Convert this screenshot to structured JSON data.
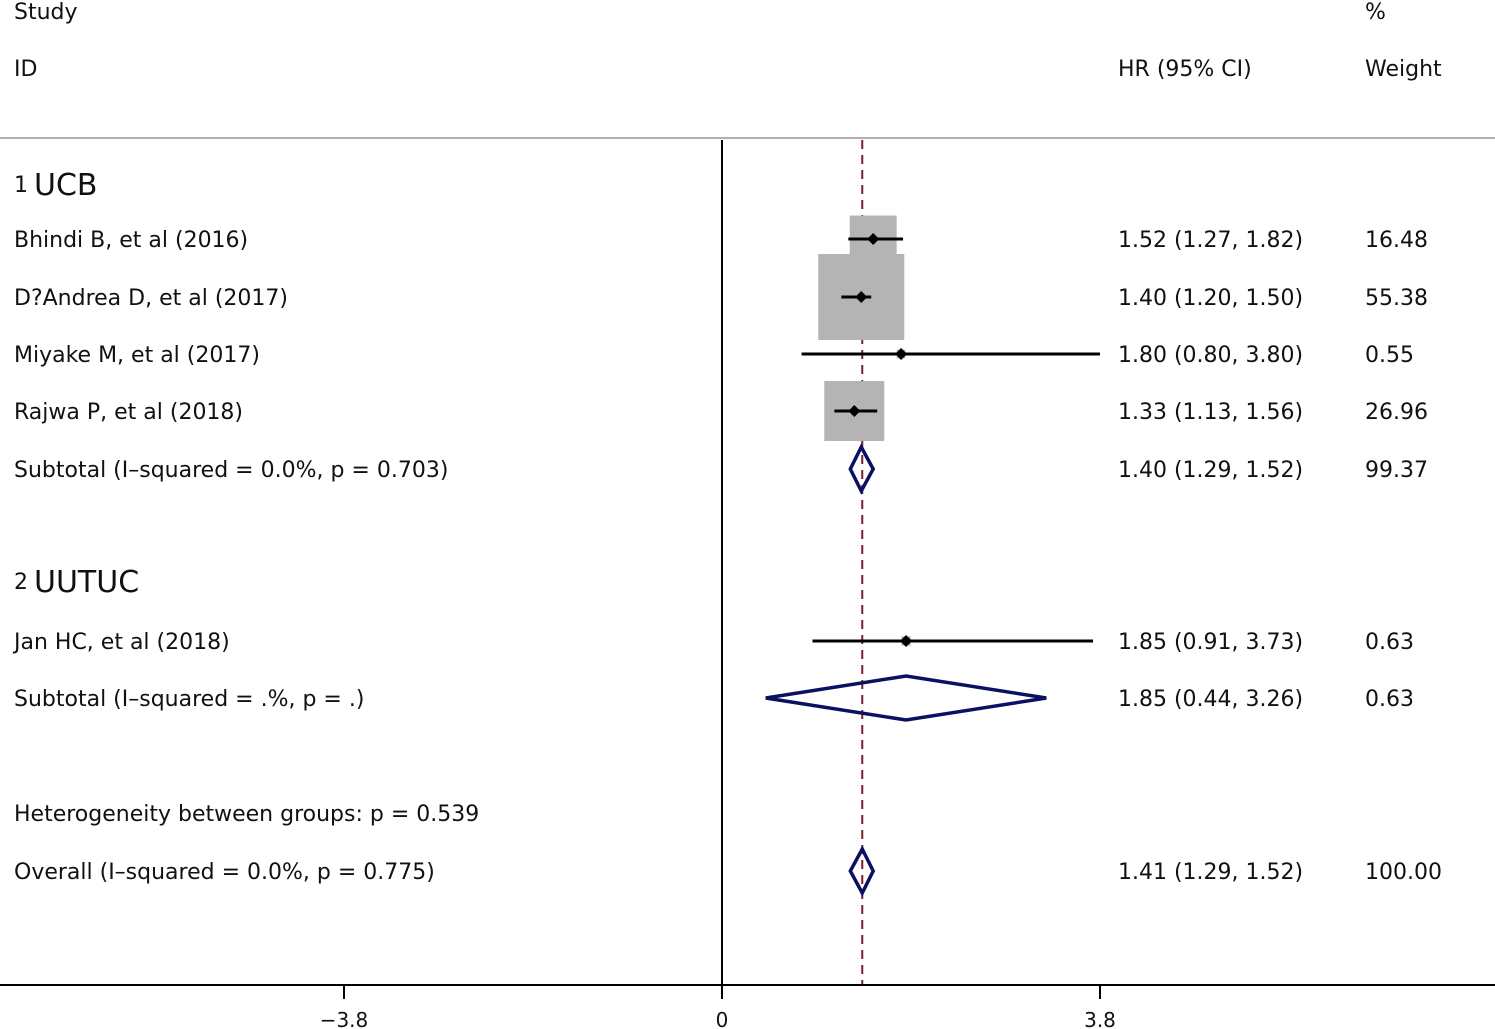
{
  "headers": {
    "study_line1": "Study",
    "study_line2": "ID",
    "hr": "HR (95% CI)",
    "weight_line1": "%",
    "weight_line2": "Weight"
  },
  "chart_data": {
    "type": "forest",
    "reference_line": 0,
    "overall_effect_line": 1.41,
    "xlim": [
      -3.8,
      3.8
    ],
    "ticks": [
      {
        "value": -3.8,
        "label": "−3.8"
      },
      {
        "value": 0,
        "label": "0"
      },
      {
        "value": 3.8,
        "label": "3.8"
      }
    ],
    "groups": [
      {
        "number": "1",
        "name": "UCB",
        "studies": [
          {
            "label": "Bhindi B, et al (2016)",
            "hr": 1.52,
            "lo": 1.27,
            "hi": 1.82,
            "ci_text": "1.52 (1.27, 1.82)",
            "weight": 16.48,
            "weight_text": "16.48"
          },
          {
            "label": "D?Andrea D, et al (2017)",
            "hr": 1.4,
            "lo": 1.2,
            "hi": 1.5,
            "ci_text": "1.40 (1.20, 1.50)",
            "weight": 55.38,
            "weight_text": "55.38"
          },
          {
            "label": "Miyake M, et al (2017)",
            "hr": 1.8,
            "lo": 0.8,
            "hi": 3.8,
            "ci_text": "1.80 (0.80, 3.80)",
            "weight": 0.55,
            "weight_text": "0.55"
          },
          {
            "label": "Rajwa P, et al (2018)",
            "hr": 1.33,
            "lo": 1.13,
            "hi": 1.56,
            "ci_text": "1.33 (1.13, 1.56)",
            "weight": 26.96,
            "weight_text": "26.96"
          }
        ],
        "subtotal": {
          "label": "Subtotal  (I–squared = 0.0%, p = 0.703)",
          "hr": 1.4,
          "lo": 1.29,
          "hi": 1.52,
          "ci_text": "1.40 (1.29, 1.52)",
          "weight_text": "99.37"
        }
      },
      {
        "number": "2",
        "name": "UUTUC",
        "studies": [
          {
            "label": "Jan HC, et al (2018)",
            "hr": 1.85,
            "lo": 0.91,
            "hi": 3.73,
            "ci_text": "1.85 (0.91, 3.73)",
            "weight": 0.63,
            "weight_text": "0.63"
          }
        ],
        "subtotal": {
          "label": "Subtotal  (I–squared = .%, p = .)",
          "hr": 1.85,
          "lo": 0.44,
          "hi": 3.26,
          "ci_text": "1.85 (0.44, 3.26)",
          "weight_text": "0.63"
        }
      }
    ],
    "heterogeneity_text": "Heterogeneity between groups: p = 0.539",
    "overall": {
      "label": "Overall  (I–squared = 0.0%, p = 0.775)",
      "hr": 1.41,
      "lo": 1.29,
      "hi": 1.52,
      "ci_text": "1.41 (1.29, 1.52)",
      "weight_text": "100.00"
    },
    "colors": {
      "effect_line": "#7a1f2b",
      "diamond": "#0b1060",
      "weight_box": "#b4b4b4",
      "zero_line": "#000000",
      "header_rule": "#b0b0b0"
    }
  }
}
